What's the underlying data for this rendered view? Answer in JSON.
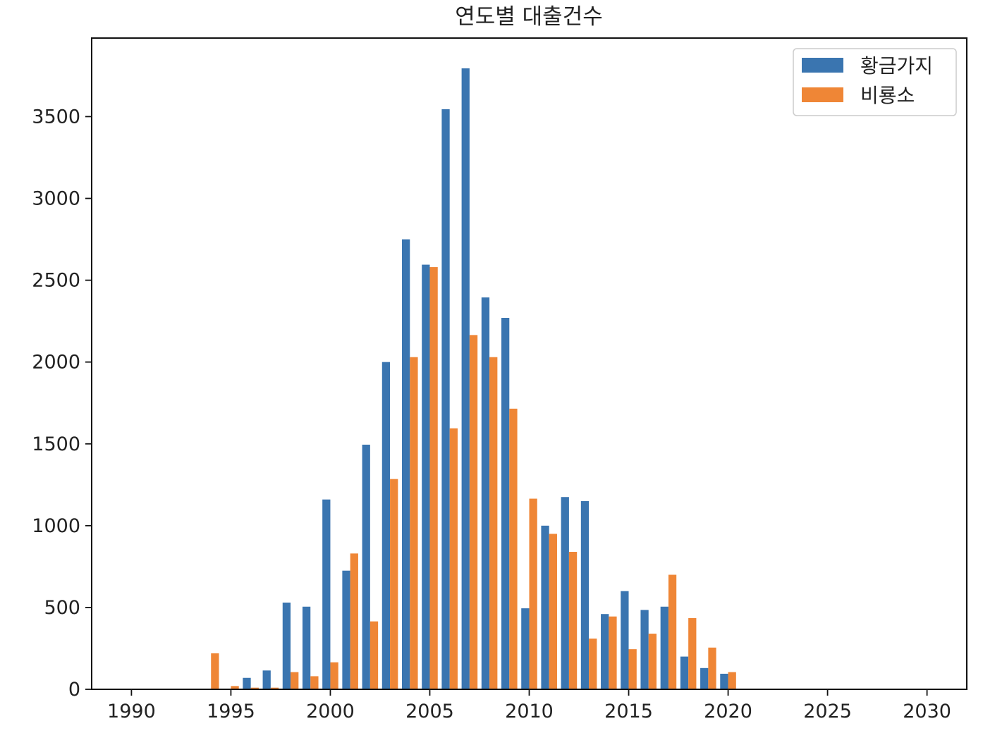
{
  "chart_data": {
    "type": "bar",
    "title": "연도별 대출건수",
    "xlabel": "",
    "ylabel": "",
    "xlim": [
      1988,
      2032
    ],
    "ylim": [
      0,
      3980
    ],
    "xticks": [
      1990,
      1995,
      2000,
      2005,
      2010,
      2015,
      2020,
      2025,
      2030
    ],
    "yticks": [
      0,
      500,
      1000,
      1500,
      2000,
      2500,
      3000,
      3500
    ],
    "grid": false,
    "legend_position": "top-right",
    "series": [
      {
        "name": "황금가지",
        "color": "#3a75b0",
        "points": [
          {
            "x": 1996,
            "y": 70
          },
          {
            "x": 1997,
            "y": 115
          },
          {
            "x": 1998,
            "y": 530
          },
          {
            "x": 1999,
            "y": 505
          },
          {
            "x": 2000,
            "y": 1160
          },
          {
            "x": 2001,
            "y": 725
          },
          {
            "x": 2002,
            "y": 1495
          },
          {
            "x": 2003,
            "y": 2000
          },
          {
            "x": 2004,
            "y": 2750
          },
          {
            "x": 2005,
            "y": 2595
          },
          {
            "x": 2006,
            "y": 3545
          },
          {
            "x": 2007,
            "y": 3795
          },
          {
            "x": 2008,
            "y": 2395
          },
          {
            "x": 2009,
            "y": 2270
          },
          {
            "x": 2010,
            "y": 495
          },
          {
            "x": 2011,
            "y": 1000
          },
          {
            "x": 2012,
            "y": 1175
          },
          {
            "x": 2013,
            "y": 1150
          },
          {
            "x": 2014,
            "y": 460
          },
          {
            "x": 2015,
            "y": 600
          },
          {
            "x": 2016,
            "y": 485
          },
          {
            "x": 2017,
            "y": 505
          },
          {
            "x": 2018,
            "y": 200
          },
          {
            "x": 2019,
            "y": 130
          },
          {
            "x": 2020,
            "y": 95
          }
        ]
      },
      {
        "name": "비룡소",
        "color": "#ef8636",
        "points": [
          {
            "x": 1994,
            "y": 220
          },
          {
            "x": 1995,
            "y": 20
          },
          {
            "x": 1996,
            "y": 10
          },
          {
            "x": 1997,
            "y": 10
          },
          {
            "x": 1998,
            "y": 105
          },
          {
            "x": 1999,
            "y": 80
          },
          {
            "x": 2000,
            "y": 165
          },
          {
            "x": 2001,
            "y": 830
          },
          {
            "x": 2002,
            "y": 415
          },
          {
            "x": 2003,
            "y": 1285
          },
          {
            "x": 2004,
            "y": 2030
          },
          {
            "x": 2005,
            "y": 2580
          },
          {
            "x": 2006,
            "y": 1595
          },
          {
            "x": 2007,
            "y": 2165
          },
          {
            "x": 2008,
            "y": 2030
          },
          {
            "x": 2009,
            "y": 1715
          },
          {
            "x": 2010,
            "y": 1165
          },
          {
            "x": 2011,
            "y": 950
          },
          {
            "x": 2012,
            "y": 840
          },
          {
            "x": 2013,
            "y": 310
          },
          {
            "x": 2014,
            "y": 445
          },
          {
            "x": 2015,
            "y": 245
          },
          {
            "x": 2016,
            "y": 340
          },
          {
            "x": 2017,
            "y": 700
          },
          {
            "x": 2018,
            "y": 435
          },
          {
            "x": 2019,
            "y": 255
          },
          {
            "x": 2020,
            "y": 105
          }
        ]
      }
    ]
  }
}
